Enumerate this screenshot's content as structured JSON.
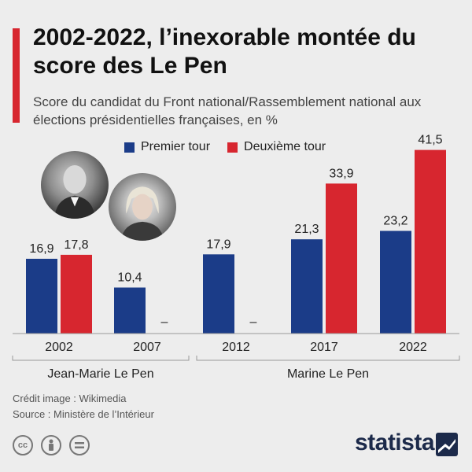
{
  "title": "2002-2022, l’inexorable montée du score des Le Pen",
  "subtitle": "Score du candidat du Front national/Rassemblement national aux élections présidentielles françaises, en %",
  "colors": {
    "accent": "#d7262f",
    "premier": "#1b3c88",
    "deuxieme": "#d7262f"
  },
  "chart_data": {
    "type": "bar",
    "title": "2002-2022, l’inexorable montée du score des Le Pen",
    "categories": [
      "2002",
      "2007",
      "2012",
      "2017",
      "2022"
    ],
    "series": [
      {
        "name": "Premier tour",
        "values": [
          16.9,
          10.4,
          17.9,
          21.3,
          23.2
        ],
        "labels": [
          "16,9",
          "10,4",
          "17,9",
          "21,3",
          "23,2"
        ]
      },
      {
        "name": "Deuxième tour",
        "values": [
          17.8,
          null,
          null,
          33.9,
          41.5
        ],
        "labels": [
          "17,8",
          "–",
          "–",
          "33,9",
          "41,5"
        ]
      }
    ],
    "ylim": [
      0,
      45
    ],
    "grid": false,
    "legend": "top",
    "groups": [
      {
        "label": "Jean-Marie Le Pen",
        "categories": [
          "2002",
          "2007"
        ]
      },
      {
        "label": "Marine Le Pen",
        "categories": [
          "2012",
          "2017",
          "2022"
        ]
      }
    ]
  },
  "footer": {
    "credit": "Crédit image : Wikimedia",
    "source": "Source : Ministère de l’Intérieur",
    "brand": "statista",
    "cc_icons": [
      "cc-icon",
      "by-icon",
      "nd-icon"
    ]
  }
}
